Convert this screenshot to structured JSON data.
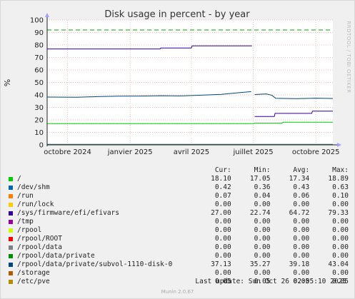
{
  "chart_data": {
    "type": "line",
    "title": "Disk usage in percent - by year",
    "ylabel": "%",
    "side_label": "RRDTOOL / TOBI OETIKER",
    "ylim": [
      0,
      100
    ],
    "yticks": [
      0,
      10,
      20,
      30,
      40,
      50,
      60,
      70,
      80,
      90,
      100
    ],
    "xlim": [
      "2024-09-01",
      "2025-10-26"
    ],
    "xticks": [
      {
        "date": "2024-10-01",
        "label": "octobre 2024"
      },
      {
        "date": "2025-01-01",
        "label": "janvier 2025"
      },
      {
        "date": "2025-04-01",
        "label": "avril 2025"
      },
      {
        "date": "2025-07-01",
        "label": "juillet 2025"
      },
      {
        "date": "2025-10-01",
        "label": "octobre 2025"
      }
    ],
    "grid": true,
    "warning_line": {
      "value": 92,
      "color": "#00aa00"
    },
    "columns": [
      "Cur:",
      "Min:",
      "Avg:",
      "Max:"
    ],
    "series": [
      {
        "name": "/",
        "color": "#00cc00",
        "cur": "18.10",
        "min": "17.05",
        "avg": "17.34",
        "max": "18.89",
        "points": [
          [
            "2024-09-01",
            17.05
          ],
          [
            "2025-07-01",
            17.05
          ],
          [
            "2025-07-03",
            17.4
          ],
          [
            "2025-08-12",
            17.4
          ],
          [
            "2025-08-14",
            18.1
          ],
          [
            "2025-10-26",
            18.1
          ]
        ]
      },
      {
        "name": "/dev/shm",
        "color": "#0066b3",
        "cur": "0.42",
        "min": "0.36",
        "avg": "0.43",
        "max": "0.63",
        "points": [
          [
            "2024-09-01",
            0.4
          ],
          [
            "2025-10-26",
            0.42
          ]
        ]
      },
      {
        "name": "/run",
        "color": "#ff8000",
        "cur": "0.07",
        "min": "0.04",
        "avg": "0.06",
        "max": "0.10",
        "points": [
          [
            "2024-09-01",
            0.06
          ],
          [
            "2025-10-26",
            0.07
          ]
        ]
      },
      {
        "name": "/run/lock",
        "color": "#ffcc00",
        "cur": "0.00",
        "min": "0.00",
        "avg": "0.00",
        "max": "0.00",
        "points": [
          [
            "2024-09-01",
            0
          ],
          [
            "2025-10-26",
            0
          ]
        ]
      },
      {
        "name": "/sys/firmware/efi/efivars",
        "color": "#330099",
        "cur": "27.00",
        "min": "22.74",
        "avg": "64.72",
        "max": "79.33",
        "points": [
          [
            "2024-09-01",
            76.8
          ],
          [
            "2025-02-14",
            76.8
          ],
          [
            "2025-02-15",
            77.6
          ],
          [
            "2025-04-01",
            77.6
          ],
          [
            "2025-04-02",
            79.3
          ],
          [
            "2025-06-29",
            79.3
          ],
          null,
          [
            "2025-07-03",
            22.7
          ],
          [
            "2025-08-01",
            22.7
          ],
          [
            "2025-08-02",
            25.2
          ],
          [
            "2025-09-25",
            25.2
          ],
          [
            "2025-09-26",
            27.0
          ],
          [
            "2025-10-26",
            27.0
          ]
        ]
      },
      {
        "name": "/tmp",
        "color": "#990099",
        "cur": "0.00",
        "min": "0.00",
        "avg": "0.00",
        "max": "0.00",
        "points": []
      },
      {
        "name": "/rpool",
        "color": "#ccff00",
        "cur": "0.00",
        "min": "0.00",
        "avg": "0.00",
        "max": "0.00",
        "points": []
      },
      {
        "name": "/rpool/ROOT",
        "color": "#ff0000",
        "cur": "0.00",
        "min": "0.00",
        "avg": "0.00",
        "max": "0.00",
        "points": []
      },
      {
        "name": "/rpool/data",
        "color": "#808080",
        "cur": "0.00",
        "min": "0.00",
        "avg": "0.00",
        "max": "0.00",
        "points": []
      },
      {
        "name": "/rpool/data/private",
        "color": "#008f00",
        "cur": "0.00",
        "min": "0.00",
        "avg": "0.00",
        "max": "0.00",
        "points": []
      },
      {
        "name": "/rpool/data/private/subvol-1110-disk-0",
        "color": "#00487d",
        "cur": "37.13",
        "min": "35.27",
        "avg": "39.18",
        "max": "43.04",
        "points": [
          [
            "2024-09-01",
            38.3
          ],
          [
            "2024-10-15",
            38.1
          ],
          [
            "2024-11-15",
            38.6
          ],
          [
            "2024-12-15",
            39.0
          ],
          [
            "2025-01-15",
            39.1
          ],
          [
            "2025-02-15",
            39.4
          ],
          [
            "2025-03-15",
            39.2
          ],
          [
            "2025-04-15",
            39.8
          ],
          [
            "2025-05-15",
            40.4
          ],
          [
            "2025-06-10",
            41.8
          ],
          [
            "2025-06-28",
            42.6
          ],
          null,
          [
            "2025-07-03",
            40.3
          ],
          [
            "2025-07-20",
            40.8
          ],
          [
            "2025-07-28",
            39.8
          ],
          [
            "2025-08-03",
            37.3
          ],
          [
            "2025-09-01",
            37.0
          ],
          [
            "2025-10-01",
            37.4
          ],
          [
            "2025-10-26",
            37.13
          ]
        ]
      },
      {
        "name": "/storage",
        "color": "#b35a00",
        "cur": "0.00",
        "min": "0.00",
        "avg": "0.00",
        "max": "0.00",
        "points": []
      },
      {
        "name": "/etc/pve",
        "color": "#b38f00",
        "cur": "0.05",
        "min": "0.05",
        "avg": "0.05",
        "max": "0.05",
        "points": [
          [
            "2024-09-01",
            0.05
          ],
          [
            "2025-10-26",
            0.05
          ]
        ]
      }
    ]
  },
  "last_update": "Last update: Sun Oct 26 02:05:10 2025",
  "munin_version": "Munin 2.0.67"
}
